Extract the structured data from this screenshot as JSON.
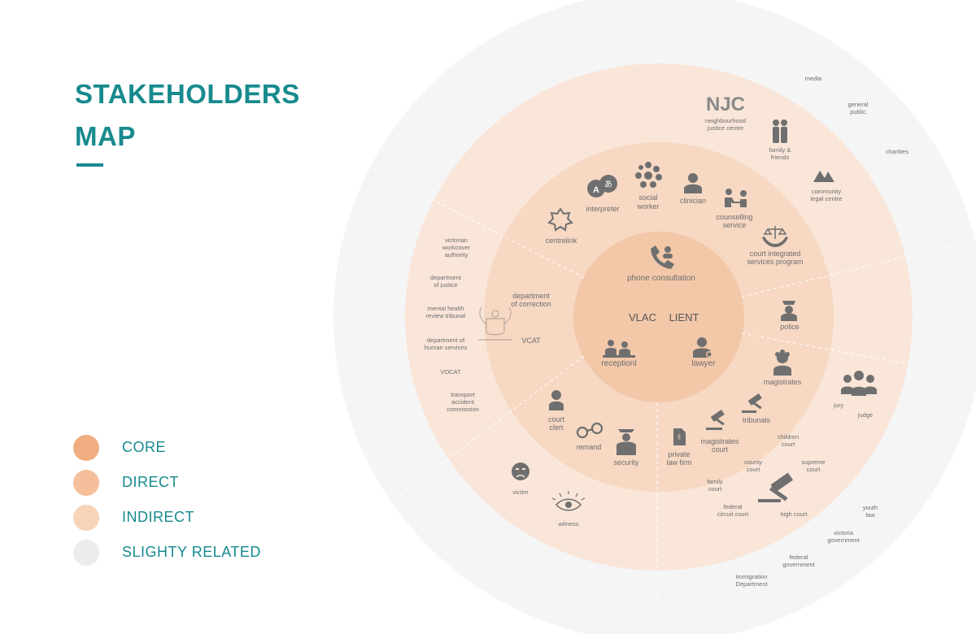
{
  "title": {
    "line1": "STAKEHOLDERS",
    "line2": "MAP"
  },
  "legend": [
    {
      "label": "CORE",
      "color": "#f0ad80"
    },
    {
      "label": "DIRECT",
      "color": "#f4bf9a"
    },
    {
      "label": "INDIRECT",
      "color": "#f7d3b8"
    },
    {
      "label": "SLIGHTY RELATED",
      "color": "#ececec"
    }
  ],
  "colors": {
    "accent": "#178a8e",
    "ring_slight": "#f5f5f5",
    "ring_indirect": "#f9e6d9",
    "ring_direct": "#f6d8c3",
    "core": "#f2c8a9",
    "icon": "#6f6f6f"
  },
  "core": {
    "label_vlac": "VLAC",
    "label_client": "LIENT",
    "phone": "phone consultation",
    "reception": "receptionl",
    "lawyer": "lawyer"
  },
  "direct": {
    "centrelink": "centrelink",
    "interpreter": "interpreter",
    "social_1": "social",
    "social_2": "worker",
    "clinician": "clinician",
    "counselling_1": "counselling",
    "counselling_2": "service",
    "court_int_1": "court integrated",
    "court_int_2": "services program",
    "police": "police",
    "magistrates": "magistrates",
    "tribunals": "tribunals",
    "mag_court_1": "magistrates",
    "mag_court_2": "court",
    "private_1": "private",
    "private_2": "law firm",
    "security": "security",
    "remand": "remand",
    "court_clert_1": "court",
    "court_clert_2": "clert",
    "vcat": "VCAT",
    "correction_1": "department",
    "correction_2": "of correction"
  },
  "indirect": {
    "njc_logo": "NJC",
    "njc_1": "neighbourhood",
    "njc_2": "justice centre",
    "family_1": "family &",
    "family_2": "friends",
    "community_1": "community",
    "community_2": "legal centre",
    "jury": "jury",
    "judge": "judge",
    "children_1": "children",
    "children_2": "court",
    "supreme_1": "supreme",
    "supreme_2": "court",
    "county_1": "county",
    "county_2": "court",
    "family_court_1": "family",
    "family_court_2": "court",
    "federal_circuit_1": "federal",
    "federal_circuit_2": "circuit court",
    "high_court": "high court",
    "victim": "victim",
    "witness": "witness",
    "workcover_1": "victorian",
    "workcover_2": "workcover",
    "workcover_3": "authority",
    "justice_1": "department",
    "justice_2": "of justice",
    "mental_1": "mental health",
    "mental_2": "review tribunal",
    "human_1": "department of",
    "human_2": "human services",
    "vocat": "VOCAT",
    "transport_1": "transport",
    "transport_2": "accident",
    "transport_3": "commission"
  },
  "slight": {
    "media": "media",
    "general_1": "general",
    "general_2": "public",
    "charities": "charities",
    "youth_1": "youth",
    "youth_2": "law",
    "victoria_1": "victoria",
    "victoria_2": "government",
    "federal_1": "federal",
    "federal_2": "government",
    "immigration_1": "Immigration",
    "immigration_2": "Department"
  }
}
